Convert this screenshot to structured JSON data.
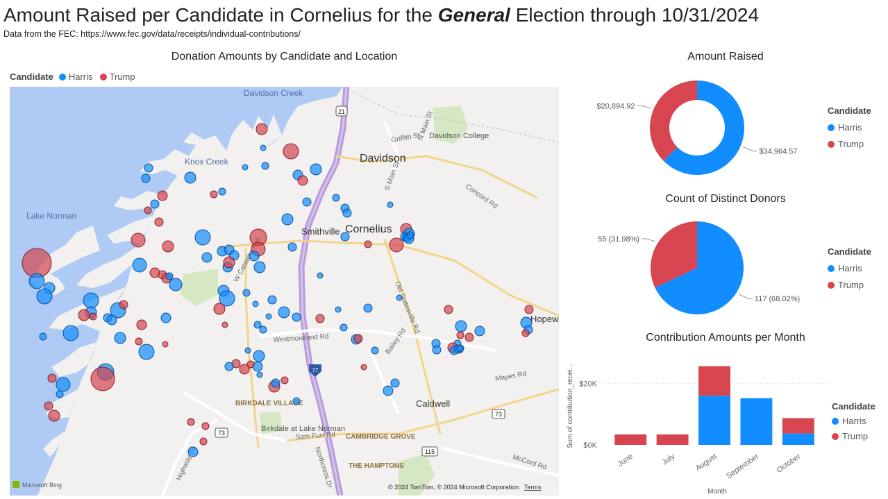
{
  "header": {
    "title_before": "Amount Raised per Candidate in Cornelius for the ",
    "title_emph": "General",
    "title_after": " Election through 10/31/2024",
    "subtitle": "Data from the FEC: https://www.fec.gov/data/receipts/individual-contributions/"
  },
  "colors": {
    "harris": "#118DFF",
    "trump": "#D64550",
    "water": "#AFCBF5",
    "land": "#F2F1EF"
  },
  "legend": {
    "title": "Candidate",
    "harris": "Harris",
    "trump": "Trump"
  },
  "map": {
    "title": "Donation Amounts by Candidate and Location",
    "place_labels": [
      "Davidson Creek",
      "Knox Creek",
      "Lake Norman",
      "Davidson",
      "Davidson College",
      "Smithville",
      "Cornelius",
      "Caldwell",
      "BIRKDALE VILLAGE",
      "Birkdale at Lake Norman",
      "CAMBRIDGE GROVE",
      "THE HAMPTONS",
      "Hopew"
    ],
    "road_labels": [
      "Griffith St",
      "N Main St",
      "S Main St",
      "Concord Rd",
      "W Catawba Ave",
      "Westmoreland Rd",
      "Old Statesville Rd",
      "Bailey Rd",
      "Mayes Rd",
      "Sam Furr Rd",
      "Northcross Dr",
      "Highway 73",
      "McCord Rd"
    ],
    "shields": [
      "21",
      "77",
      "73",
      "73",
      "115"
    ],
    "attribution": "© 2024 TomTom, © 2024 Microsoft Corporation",
    "terms": "Terms",
    "bing": "Microsoft Bing"
  },
  "chart_data": [
    {
      "type": "pie",
      "variant": "donut",
      "title": "Amount Raised",
      "slices": [
        {
          "name": "Harris",
          "value": 34964.57,
          "label": "$34,964.57",
          "color": "#118DFF"
        },
        {
          "name": "Trump",
          "value": 20894.92,
          "label": "$20,894.92",
          "color": "#D64550"
        }
      ],
      "legend_title": "Candidate",
      "legend_position": "right"
    },
    {
      "type": "pie",
      "title": "Count of Distinct Donors",
      "slices": [
        {
          "name": "Harris",
          "value": 117,
          "label": "117 (68.02%)",
          "color": "#118DFF"
        },
        {
          "name": "Trump",
          "value": 55,
          "label": "55 (31.98%)",
          "color": "#D64550"
        }
      ],
      "legend_title": "Candidate",
      "legend_position": "right"
    },
    {
      "type": "bar",
      "stacked": true,
      "title": "Contribution Amounts per Month",
      "categories": [
        "June",
        "July",
        "August",
        "September",
        "October"
      ],
      "series": [
        {
          "name": "Harris",
          "values": [
            0,
            0,
            16000,
            15200,
            3700
          ],
          "color": "#118DFF"
        },
        {
          "name": "Trump",
          "values": [
            3400,
            3400,
            9600,
            0,
            5000
          ],
          "color": "#D64550"
        }
      ],
      "xlabel": "Month",
      "ylabel": "Sum of contribution_recei...",
      "yticks": [
        "$0K",
        "$20K"
      ],
      "ylim": [
        0,
        28000
      ],
      "grid": true,
      "legend_title": "Candidate",
      "legend_position": "right"
    }
  ]
}
